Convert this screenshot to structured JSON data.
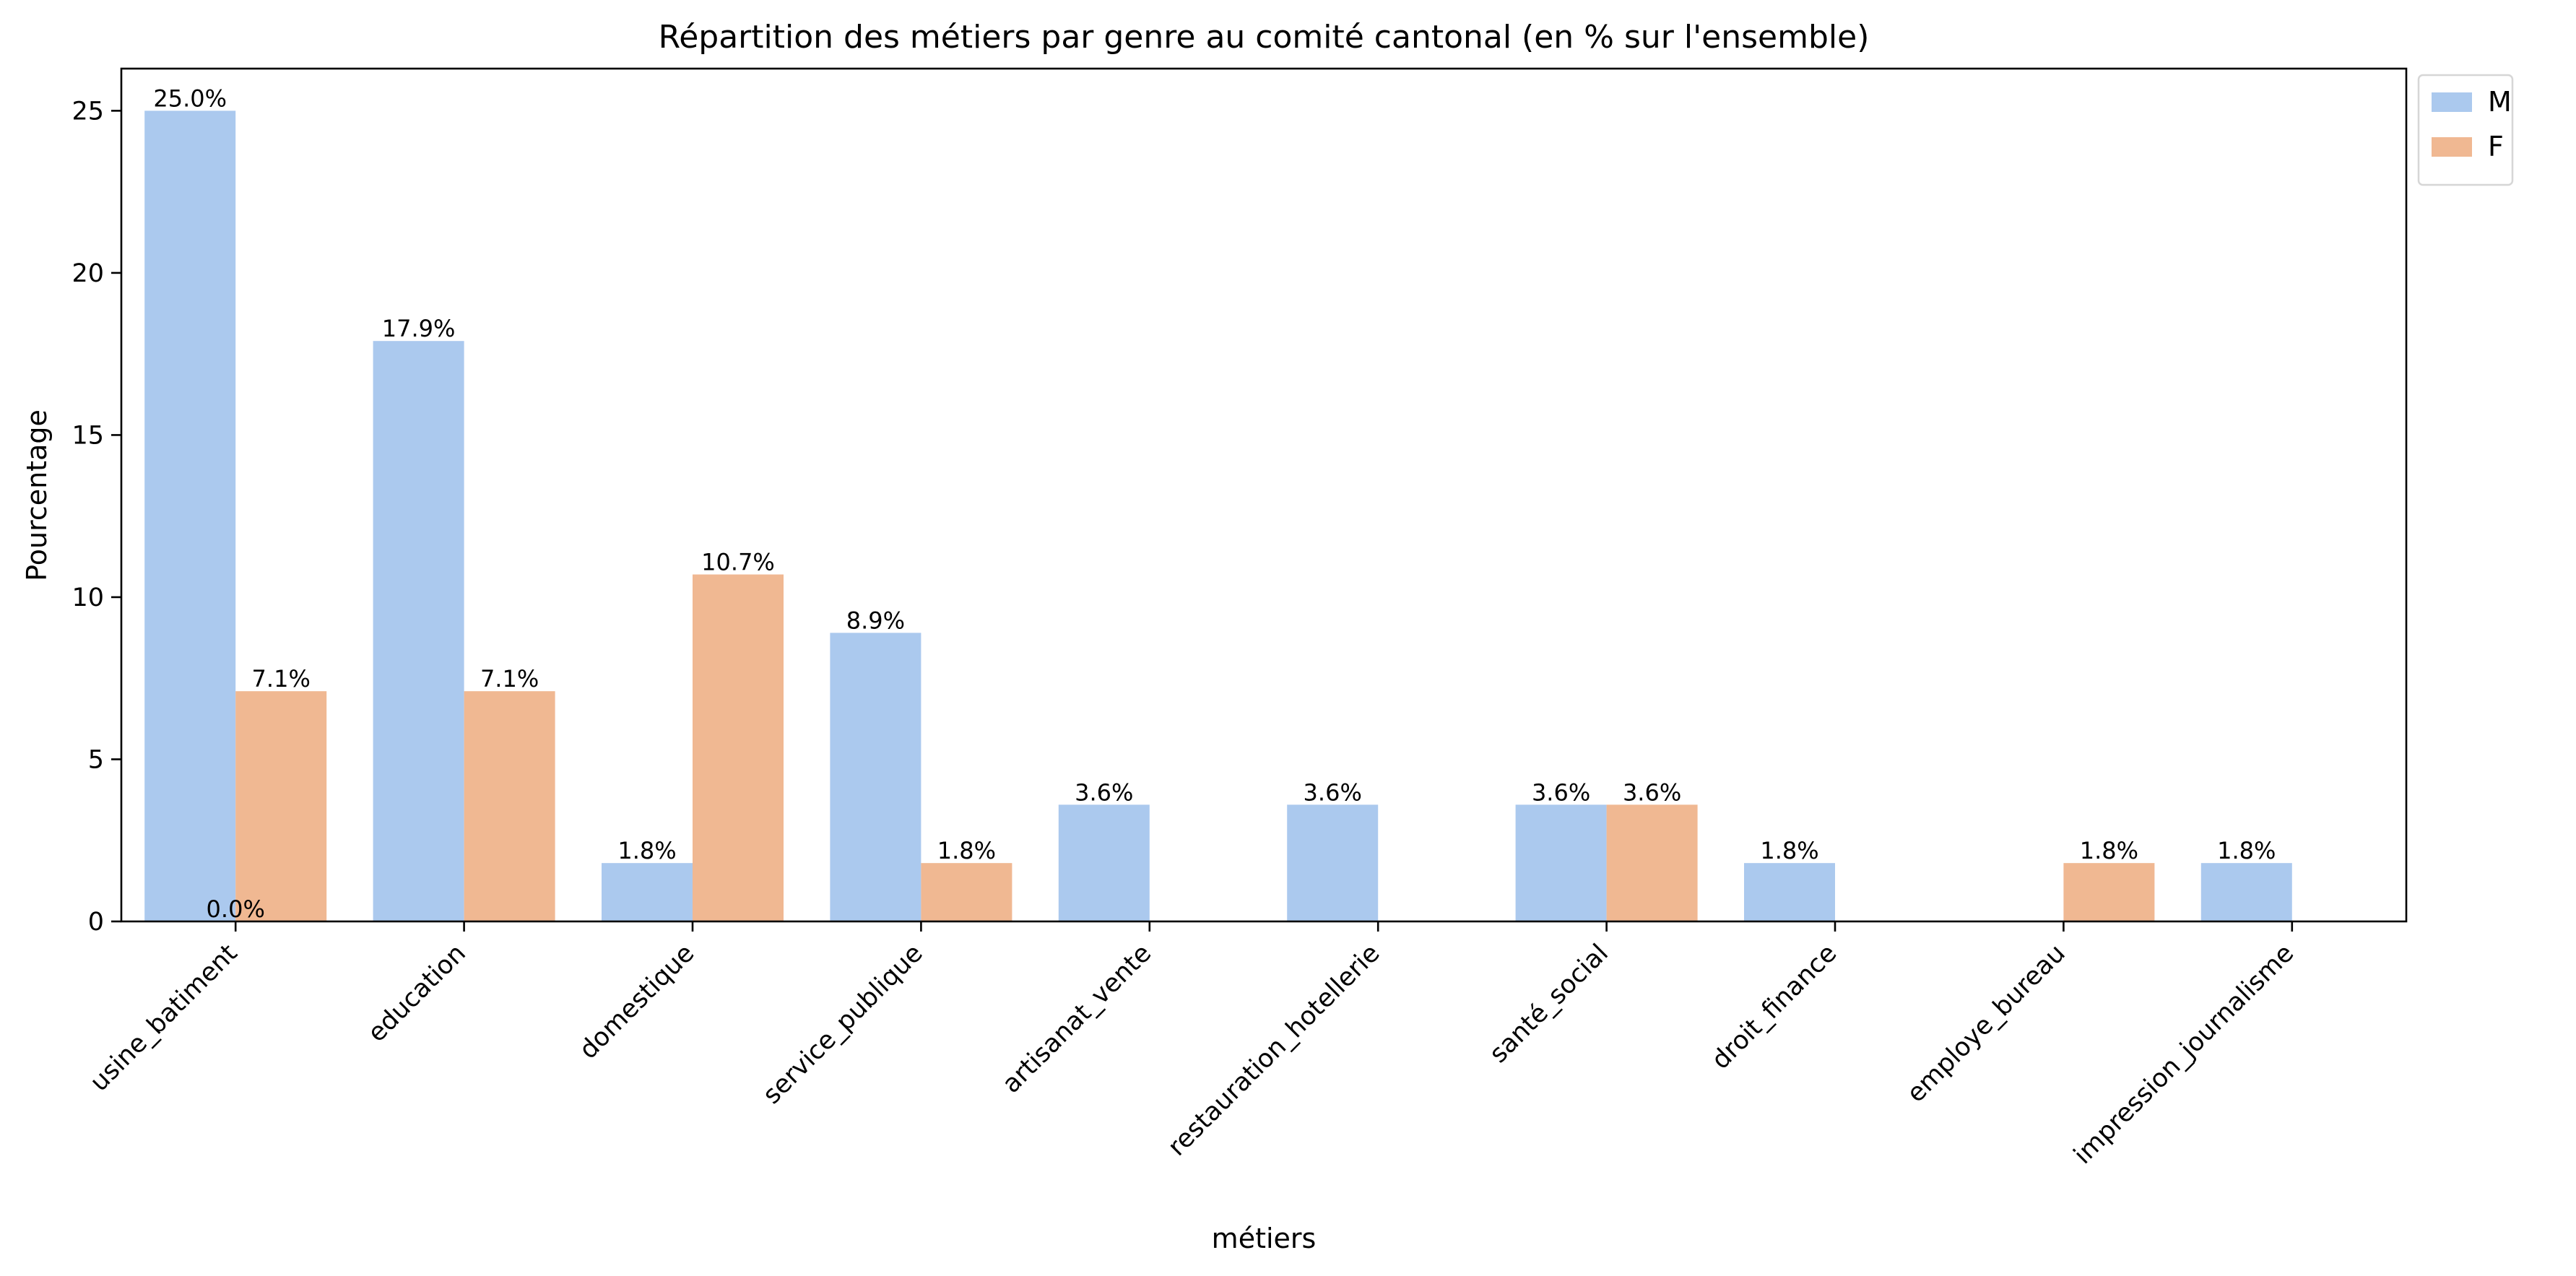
{
  "chart_data": {
    "type": "bar",
    "title": "Répartition des métiers par genre au comité cantonal (en % sur l'ensemble)",
    "xlabel": "métiers",
    "ylabel": "Pourcentage",
    "categories": [
      "usine_batiment",
      "education",
      "domestique",
      "service_publique",
      "artisanat_vente",
      "restauration_hotellerie",
      "santé_social",
      "droit_finance",
      "employe_bureau",
      "impression_journalisme"
    ],
    "series": [
      {
        "name": "M",
        "color": "#abc9ee",
        "values": [
          25.0,
          17.9,
          1.8,
          8.9,
          3.6,
          3.6,
          3.6,
          1.8,
          null,
          1.8
        ],
        "labels": [
          "25.0%",
          "17.9%",
          "1.8%",
          "8.9%",
          "3.6%",
          "3.6%",
          "3.6%",
          "1.8%",
          "",
          "1.8%"
        ]
      },
      {
        "name": "F",
        "color": "#f0b892",
        "values": [
          7.1,
          7.1,
          10.7,
          1.8,
          null,
          null,
          3.6,
          null,
          1.8,
          null
        ],
        "labels": [
          "7.1%",
          "7.1%",
          "10.7%",
          "1.8%",
          "",
          "",
          "3.6%",
          "",
          "1.8%",
          ""
        ]
      }
    ],
    "extra_labels": [
      {
        "category_index": 0,
        "text": "0.0%"
      }
    ],
    "ylim": [
      0,
      26.3
    ],
    "yticks": [
      0,
      5,
      10,
      15,
      20,
      25
    ],
    "ytick_labels": [
      "0",
      "5",
      "10",
      "15",
      "20",
      "25"
    ],
    "grid": false,
    "legend": {
      "position": "outside-top-right",
      "entries": [
        "M",
        "F"
      ]
    }
  }
}
